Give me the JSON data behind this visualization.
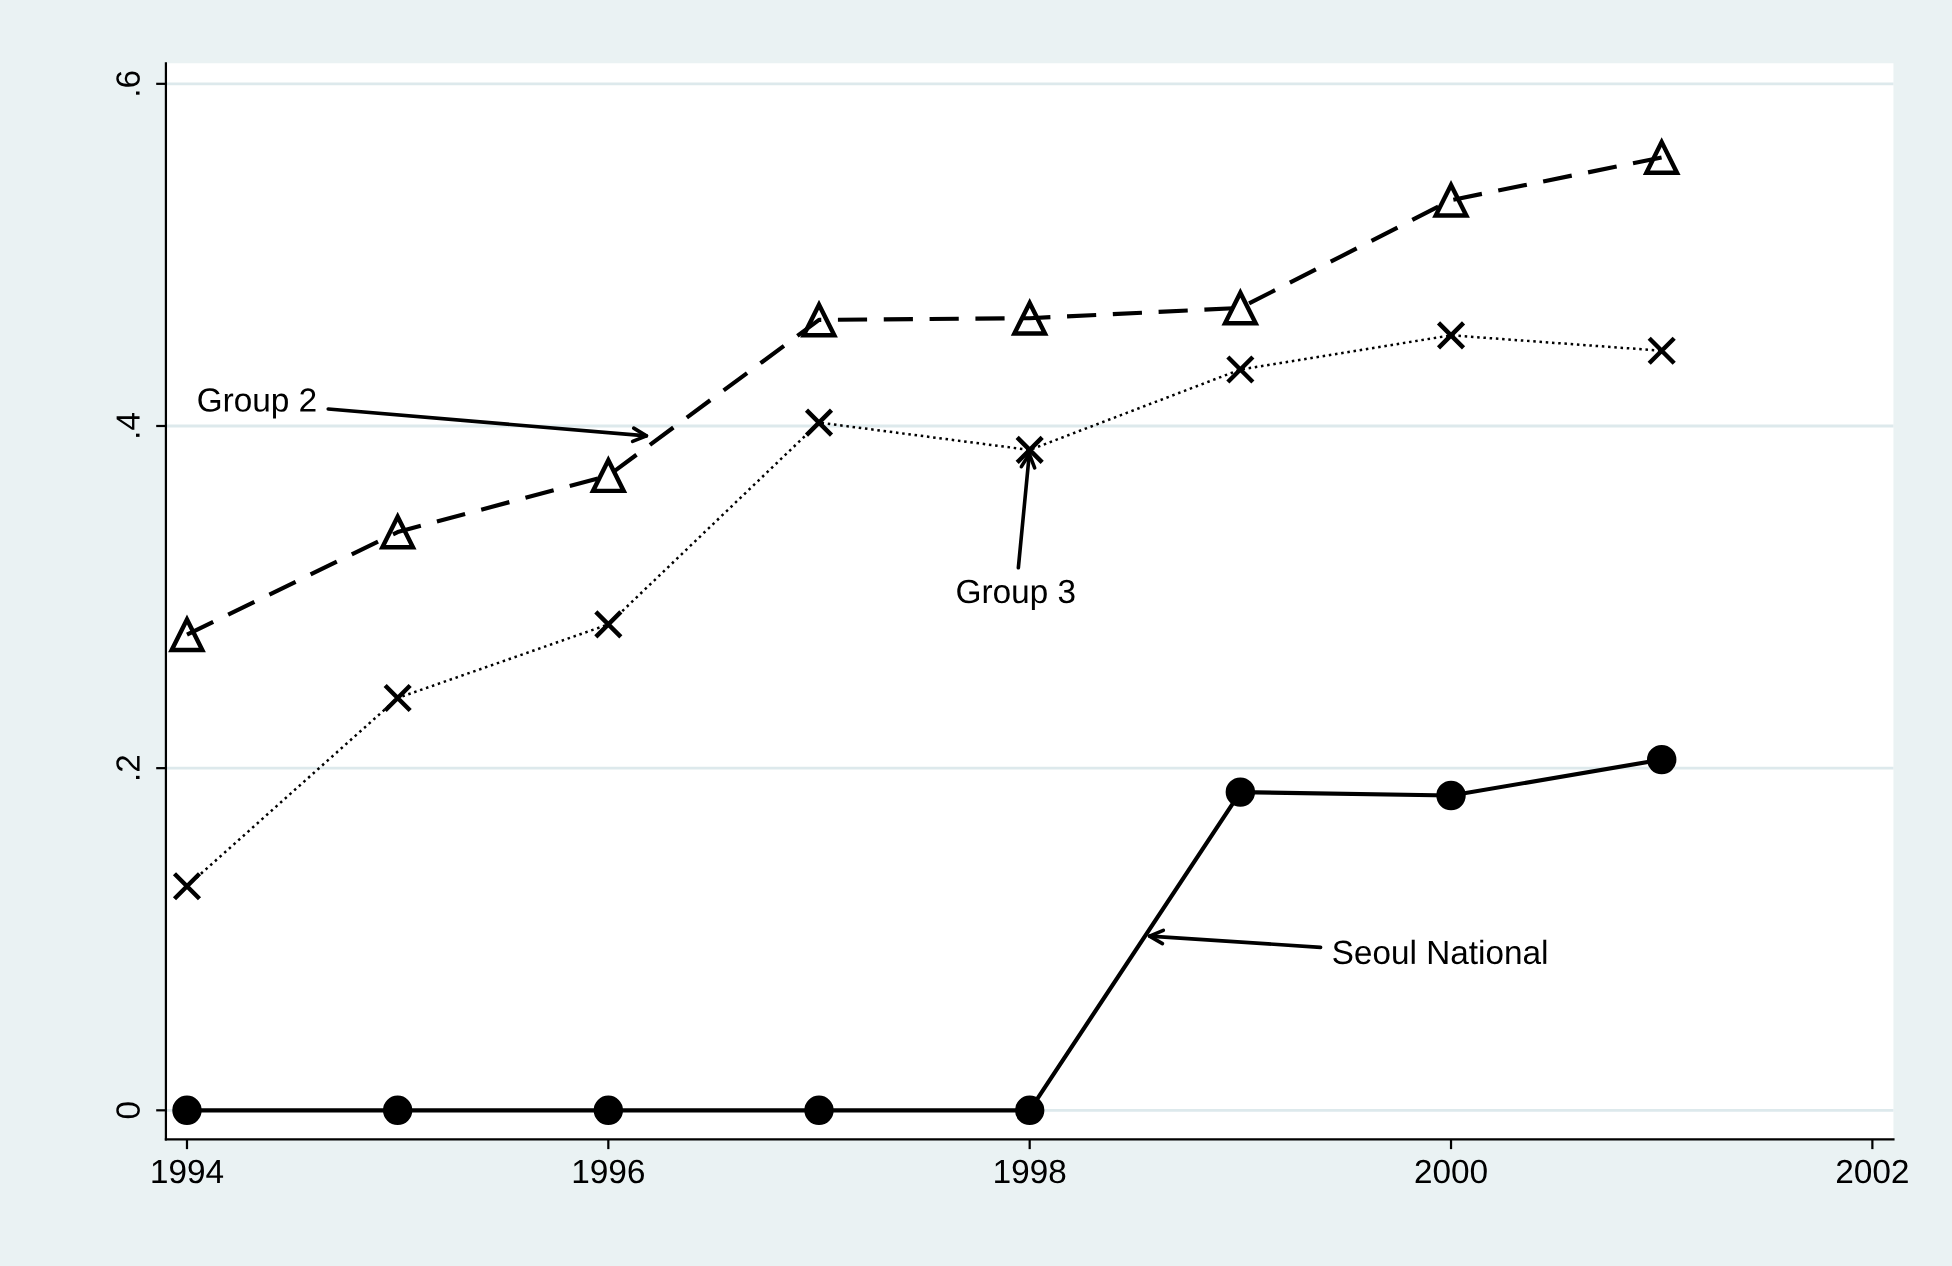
{
  "chart_data": {
    "type": "line",
    "x": [
      1994,
      1995,
      1996,
      1997,
      1998,
      1999,
      2000,
      2001
    ],
    "series": [
      {
        "color": "#000000",
        "marker": "triangle",
        "line_style": "dashed",
        "values": [
          0.278,
          0.338,
          0.371,
          0.462,
          0.463,
          0.469,
          0.532,
          0.557
        ]
      },
      {
        "color": "#000000",
        "marker": "cross",
        "line_style": "dotted",
        "values": [
          0.131,
          0.241,
          0.284,
          0.402,
          0.386,
          0.433,
          0.453,
          0.444
        ]
      },
      {
        "color": "#000000",
        "marker": "circle",
        "line_style": "solid",
        "values": [
          0,
          0,
          0,
          0,
          0,
          0.186,
          0.184,
          0.205
        ]
      }
    ],
    "annotations": [
      {
        "text": "Group 2",
        "x": 1996.2,
        "y": 0.394
      },
      {
        "text": "Group 3",
        "x": 1998,
        "y": 0.386
      },
      {
        "text": "Seoul National",
        "x": 1998.55,
        "y": 0.102
      }
    ],
    "xlim": [
      1993.9,
      2002.1
    ],
    "ylim": [
      -0.017,
      0.612
    ],
    "xticks": [
      1994,
      1996,
      1998,
      2000,
      2002
    ],
    "yticks": [
      {
        "value": 0,
        "label": "0"
      },
      {
        "value": 0.2,
        "label": ".2"
      },
      {
        "value": 0.4,
        "label": ".4"
      },
      {
        "value": 0.6,
        "label": ".6"
      }
    ],
    "grid": "y",
    "legend": false
  }
}
